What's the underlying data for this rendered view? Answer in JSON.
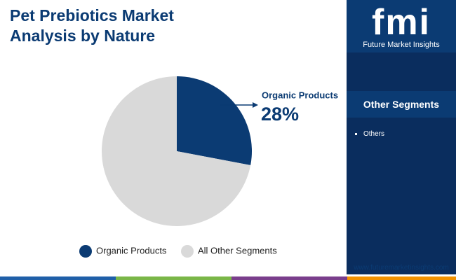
{
  "chart_data": {
    "type": "pie",
    "title": "Pet Prebiotics Market Analysis by Nature",
    "categories": [
      "Organic Products",
      "All Other Segments"
    ],
    "values": [
      28,
      72
    ],
    "value_labels": [
      "28%",
      null
    ],
    "colors": [
      "#0b3b73",
      "#d9d9d9"
    ]
  },
  "panel": {
    "logo": "fmi",
    "brand": "Future Market Insights",
    "heading": "Other Segments",
    "items": [
      "Others"
    ],
    "url": "www.futuremarketinsights.com"
  }
}
